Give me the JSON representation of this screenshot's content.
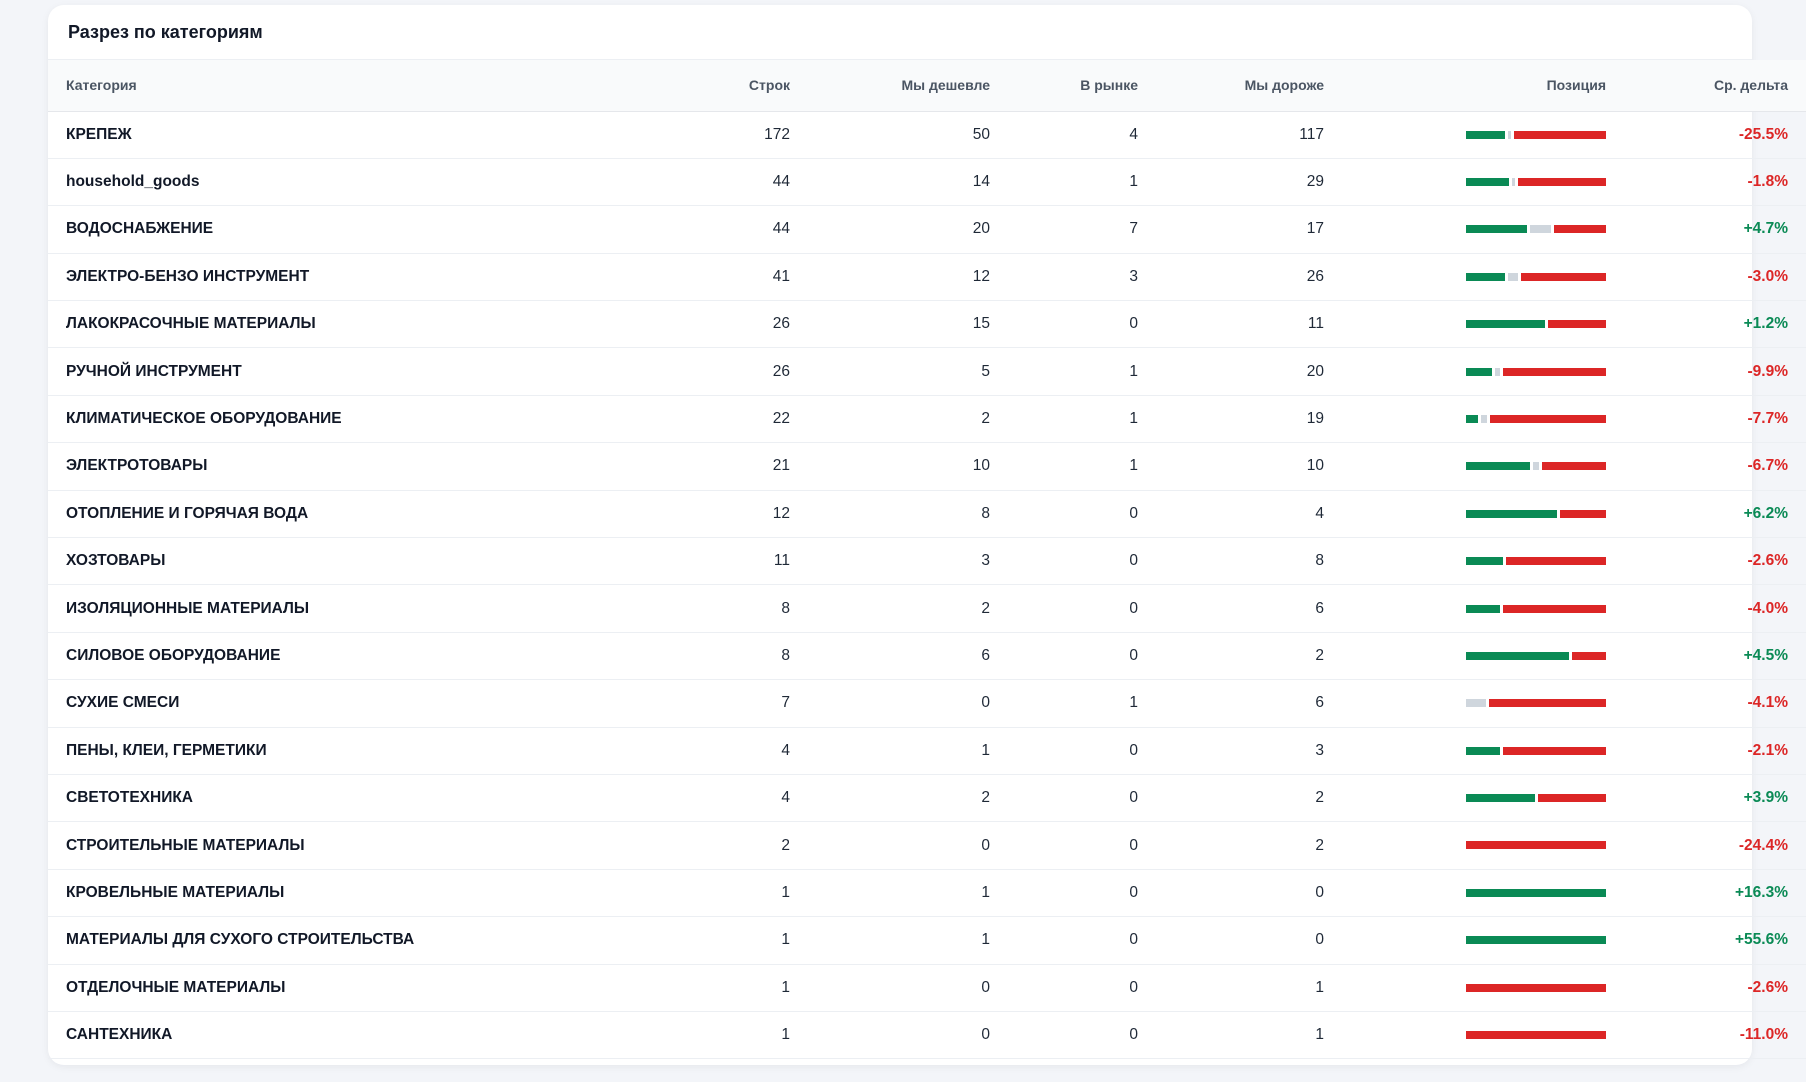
{
  "card": {
    "title": "Разрез по категориям"
  },
  "columns": {
    "category": "Категория",
    "rows": "Строк",
    "cheaper": "Мы дешевле",
    "in_market": "В рынке",
    "dearer": "Мы дороже",
    "position": "Позиция",
    "avg_delta": "Ср. дельта"
  },
  "colors": {
    "cheaper": "#0a8a55",
    "in_market": "#cfd6dd",
    "dearer": "#dc2626",
    "positive_delta": "#0a8a55",
    "negative_delta": "#dc2626"
  },
  "rows": [
    {
      "category": "КРЕПЕЖ",
      "rows": "172",
      "cheaper": "50",
      "in_market": "4",
      "dearer": "117",
      "delta": "-25.5%"
    },
    {
      "category": "household_goods",
      "rows": "44",
      "cheaper": "14",
      "in_market": "1",
      "dearer": "29",
      "delta": "-1.8%"
    },
    {
      "category": "ВОДОСНАБЖЕНИЕ",
      "rows": "44",
      "cheaper": "20",
      "in_market": "7",
      "dearer": "17",
      "delta": "+4.7%"
    },
    {
      "category": "ЭЛЕКТРО-БЕНЗО ИНСТРУМЕНТ",
      "rows": "41",
      "cheaper": "12",
      "in_market": "3",
      "dearer": "26",
      "delta": "-3.0%"
    },
    {
      "category": "ЛАКОКРАСОЧНЫЕ МАТЕРИАЛЫ",
      "rows": "26",
      "cheaper": "15",
      "in_market": "0",
      "dearer": "11",
      "delta": "+1.2%"
    },
    {
      "category": "РУЧНОЙ ИНСТРУМЕНТ",
      "rows": "26",
      "cheaper": "5",
      "in_market": "1",
      "dearer": "20",
      "delta": "-9.9%"
    },
    {
      "category": "КЛИМАТИЧЕСКОЕ ОБОРУДОВАНИЕ",
      "rows": "22",
      "cheaper": "2",
      "in_market": "1",
      "dearer": "19",
      "delta": "-7.7%"
    },
    {
      "category": "ЭЛЕКТРОТОВАРЫ",
      "rows": "21",
      "cheaper": "10",
      "in_market": "1",
      "dearer": "10",
      "delta": "-6.7%"
    },
    {
      "category": "ОТОПЛЕНИЕ И ГОРЯЧАЯ ВОДА",
      "rows": "12",
      "cheaper": "8",
      "in_market": "0",
      "dearer": "4",
      "delta": "+6.2%"
    },
    {
      "category": "ХОЗТОВАРЫ",
      "rows": "11",
      "cheaper": "3",
      "in_market": "0",
      "dearer": "8",
      "delta": "-2.6%"
    },
    {
      "category": "ИЗОЛЯЦИОННЫЕ МАТЕРИАЛЫ",
      "rows": "8",
      "cheaper": "2",
      "in_market": "0",
      "dearer": "6",
      "delta": "-4.0%"
    },
    {
      "category": "СИЛОВОЕ ОБОРУДОВАНИЕ",
      "rows": "8",
      "cheaper": "6",
      "in_market": "0",
      "dearer": "2",
      "delta": "+4.5%"
    },
    {
      "category": "СУХИЕ СМЕСИ",
      "rows": "7",
      "cheaper": "0",
      "in_market": "1",
      "dearer": "6",
      "delta": "-4.1%"
    },
    {
      "category": "ПЕНЫ, КЛЕИ, ГЕРМЕТИКИ",
      "rows": "4",
      "cheaper": "1",
      "in_market": "0",
      "dearer": "3",
      "delta": "-2.1%"
    },
    {
      "category": "СВЕТОТЕХНИКА",
      "rows": "4",
      "cheaper": "2",
      "in_market": "0",
      "dearer": "2",
      "delta": "+3.9%"
    },
    {
      "category": "СТРОИТЕЛЬНЫЕ МАТЕРИАЛЫ",
      "rows": "2",
      "cheaper": "0",
      "in_market": "0",
      "dearer": "2",
      "delta": "-24.4%"
    },
    {
      "category": "КРОВЕЛЬНЫЕ МАТЕРИАЛЫ",
      "rows": "1",
      "cheaper": "1",
      "in_market": "0",
      "dearer": "0",
      "delta": "+16.3%"
    },
    {
      "category": "МАТЕРИАЛЫ ДЛЯ СУХОГО СТРОИТЕЛЬСТВА",
      "rows": "1",
      "cheaper": "1",
      "in_market": "0",
      "dearer": "0",
      "delta": "+55.6%"
    },
    {
      "category": "ОТДЕЛОЧНЫЕ МАТЕРИАЛЫ",
      "rows": "1",
      "cheaper": "0",
      "in_market": "0",
      "dearer": "1",
      "delta": "-2.6%"
    },
    {
      "category": "САНТЕХНИКА",
      "rows": "1",
      "cheaper": "0",
      "in_market": "0",
      "dearer": "1",
      "delta": "-11.0%"
    }
  ]
}
